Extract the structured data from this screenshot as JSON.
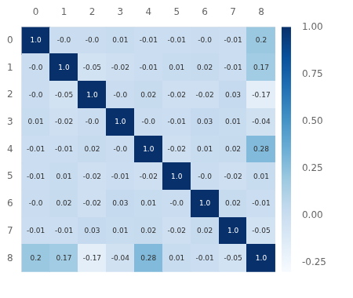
{
  "chart_data": {
    "type": "heatmap",
    "categories": [
      "0",
      "1",
      "2",
      "3",
      "4",
      "5",
      "6",
      "7",
      "8"
    ],
    "values": [
      [
        1.0,
        -0.0,
        -0.0,
        0.01,
        -0.01,
        -0.01,
        -0.0,
        -0.01,
        0.2
      ],
      [
        -0.0,
        1.0,
        -0.05,
        -0.02,
        -0.01,
        0.01,
        0.02,
        -0.01,
        0.17
      ],
      [
        -0.0,
        -0.05,
        1.0,
        -0.0,
        0.02,
        -0.02,
        -0.02,
        0.03,
        -0.17
      ],
      [
        0.01,
        -0.02,
        -0.0,
        1.0,
        -0.0,
        -0.01,
        0.03,
        0.01,
        -0.04
      ],
      [
        -0.01,
        -0.01,
        0.02,
        -0.0,
        1.0,
        -0.02,
        0.01,
        0.02,
        0.28
      ],
      [
        -0.01,
        0.01,
        -0.02,
        -0.01,
        -0.02,
        1.0,
        -0.0,
        -0.02,
        0.01
      ],
      [
        -0.0,
        0.02,
        -0.02,
        0.03,
        0.01,
        -0.0,
        1.0,
        0.02,
        -0.01
      ],
      [
        -0.01,
        -0.01,
        0.03,
        0.01,
        0.02,
        -0.02,
        0.02,
        1.0,
        -0.05
      ],
      [
        0.2,
        0.17,
        -0.17,
        -0.04,
        0.28,
        0.01,
        -0.01,
        -0.05,
        1.0
      ]
    ],
    "value_labels": [
      [
        "1.0",
        "-0.0",
        "-0.0",
        "0.01",
        "-0.01",
        "-0.01",
        "-0.0",
        "-0.01",
        "0.2"
      ],
      [
        "-0.0",
        "1.0",
        "-0.05",
        "-0.02",
        "-0.01",
        "0.01",
        "0.02",
        "-0.01",
        "0.17"
      ],
      [
        "-0.0",
        "-0.05",
        "1.0",
        "-0.0",
        "0.02",
        "-0.02",
        "-0.02",
        "0.03",
        "-0.17"
      ],
      [
        "0.01",
        "-0.02",
        "-0.0",
        "1.0",
        "-0.0",
        "-0.01",
        "0.03",
        "0.01",
        "-0.04"
      ],
      [
        "-0.01",
        "-0.01",
        "0.02",
        "-0.0",
        "1.0",
        "-0.02",
        "0.01",
        "0.02",
        "0.28"
      ],
      [
        "-0.01",
        "0.01",
        "-0.02",
        "-0.01",
        "-0.02",
        "1.0",
        "-0.0",
        "-0.02",
        "0.01"
      ],
      [
        "-0.0",
        "0.02",
        "-0.02",
        "0.03",
        "0.01",
        "-0.0",
        "1.0",
        "0.02",
        "-0.01"
      ],
      [
        "-0.01",
        "-0.01",
        "0.03",
        "0.01",
        "0.02",
        "-0.02",
        "0.02",
        "1.0",
        "-0.05"
      ],
      [
        "0.2",
        "0.17",
        "-0.17",
        "-0.04",
        "0.28",
        "0.01",
        "-0.01",
        "-0.05",
        "1.0"
      ]
    ],
    "data_labels": true,
    "color": [
      "#f7fbff",
      "#deebf7",
      "#c6dbef",
      "#9ecae1",
      "#6baed6",
      "#4292c6",
      "#2171b5",
      "#08519c",
      "#08306b"
    ],
    "colorbar_range": [
      -0.3,
      1.0
    ],
    "colorbar_ticks": [
      {
        "value": 1.0,
        "label": "1.00"
      },
      {
        "value": 0.75,
        "label": "0.75"
      },
      {
        "value": 0.5,
        "label": "0.50"
      },
      {
        "value": 0.25,
        "label": "0.25"
      },
      {
        "value": 0.0,
        "label": "0.00"
      },
      {
        "value": -0.25,
        "label": "-0.25"
      }
    ],
    "grid": false
  }
}
